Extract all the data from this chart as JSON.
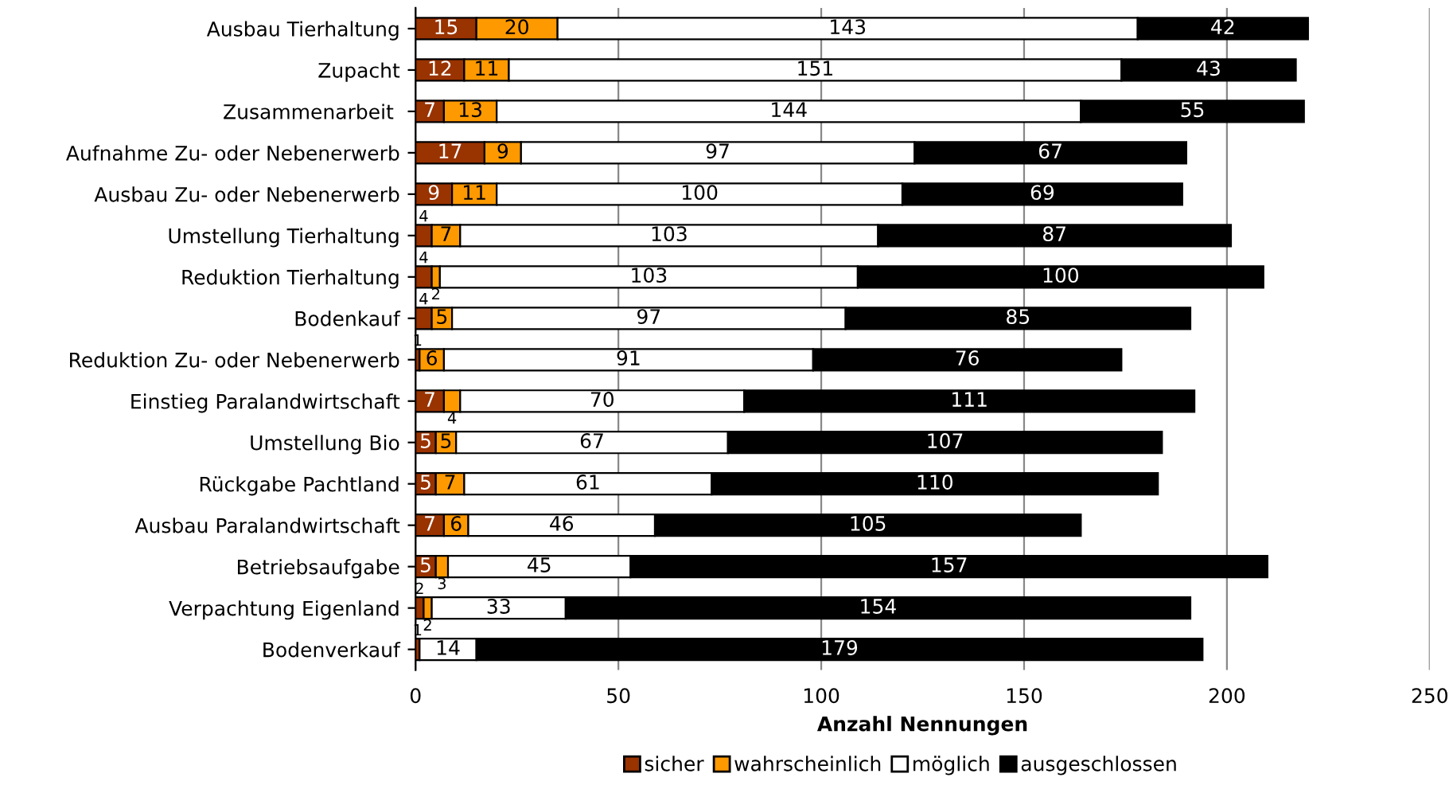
{
  "chart_data": {
    "type": "bar",
    "orientation": "horizontal",
    "stacked": true,
    "xlabel": "Anzahl Nennungen",
    "categories": [
      "Ausbau Tierhaltung",
      "Zupacht",
      "Zusammenarbeit ",
      "Aufnahme Zu- oder Nebenerwerb",
      "Ausbau Zu- oder Nebenerwerb",
      "Umstellung Tierhaltung",
      "Reduktion Tierhaltung",
      "Bodenkauf",
      "Reduktion Zu- oder Nebenerwerb",
      "Einstieg Paralandwirtschaft",
      "Umstellung Bio",
      "Rückgabe Pachtland",
      "Ausbau Paralandwirtschaft",
      "Betriebsaufgabe",
      "Verpachtung Eigenland",
      "Bodenverkauf"
    ],
    "series": [
      {
        "name": "sicher",
        "color": "#993300",
        "values": [
          15,
          12,
          7,
          17,
          9,
          4,
          4,
          4,
          1,
          7,
          5,
          5,
          7,
          5,
          2,
          1
        ]
      },
      {
        "name": "wahrscheinlich",
        "color": "#ff9900",
        "values": [
          20,
          11,
          13,
          9,
          11,
          7,
          2,
          5,
          6,
          4,
          5,
          7,
          6,
          3,
          2,
          null
        ]
      },
      {
        "name": "möglich",
        "color": "#ffffff",
        "values": [
          143,
          151,
          144,
          97,
          100,
          103,
          103,
          97,
          91,
          70,
          67,
          61,
          46,
          45,
          33,
          14
        ]
      },
      {
        "name": "ausgeschlossen",
        "color": "#000000",
        "values": [
          42,
          43,
          55,
          67,
          69,
          87,
          100,
          85,
          76,
          111,
          107,
          110,
          105,
          157,
          154,
          179
        ]
      }
    ],
    "xlim": [
      0,
      250
    ],
    "xticks": [
      0,
      50,
      100,
      150,
      200,
      250
    ],
    "grid": "x",
    "legend": "bottom",
    "data_labels": true
  }
}
